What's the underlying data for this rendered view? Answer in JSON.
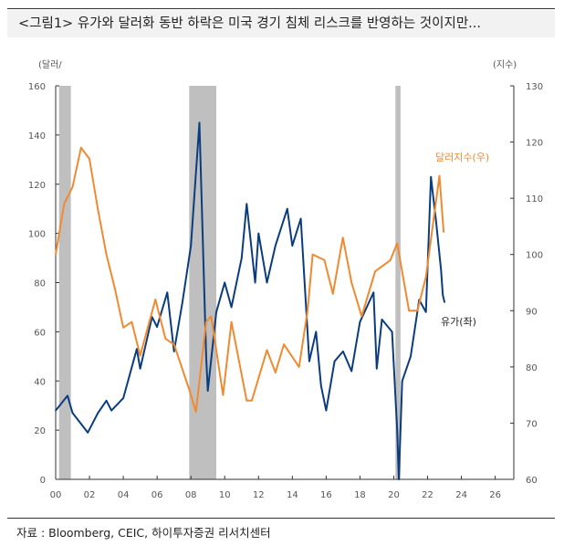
{
  "title": "<그림1> 유가와 달러화 동반 하락은 미국 경기 침체 리스크를 반영하는 것이지만...",
  "source": "자료 : Bloomberg, CEIC, 하이투자증권 리서치센터",
  "chart_data": {
    "type": "line",
    "left_axis": {
      "unit_label": "(달러/",
      "ylim": [
        0,
        160
      ],
      "ticks": [
        0,
        20,
        40,
        60,
        80,
        100,
        120,
        140,
        160
      ]
    },
    "right_axis": {
      "unit_label": "(지수)",
      "ylim": [
        60,
        130
      ],
      "ticks": [
        60,
        70,
        80,
        90,
        100,
        110,
        120,
        130
      ]
    },
    "x_axis": {
      "xlim": [
        2000,
        2027.1
      ],
      "ticks": [
        2000,
        2002,
        2004,
        2006,
        2008,
        2010,
        2012,
        2014,
        2016,
        2018,
        2020,
        2022,
        2024,
        2026
      ],
      "tick_labels": [
        "00",
        "02",
        "04",
        "06",
        "08",
        "10",
        "12",
        "14",
        "16",
        "18",
        "20",
        "22",
        "24",
        "26"
      ]
    },
    "grid": false,
    "recession_shading": [
      [
        2000.2,
        2000.9
      ],
      [
        2007.9,
        2009.5
      ],
      [
        2020.1,
        2020.4
      ]
    ],
    "colors": {
      "oil": "#0b3d7e",
      "dollar": "#f08a30",
      "shading": "#bfbfbf"
    },
    "series": [
      {
        "name": "유가(좌)",
        "axis": "left",
        "color": "#0b3d7e",
        "x": [
          2000,
          2000.7,
          2001,
          2001.9,
          2002.5,
          2003,
          2003.3,
          2004,
          2004.8,
          2005,
          2005.7,
          2006,
          2006.6,
          2007,
          2007.5,
          2008,
          2008.5,
          2008.9,
          2009,
          2009.5,
          2010,
          2010.4,
          2011,
          2011.3,
          2011.8,
          2012,
          2012.5,
          2013,
          2013.7,
          2014,
          2014.5,
          2014.9,
          2015,
          2015.4,
          2015.7,
          2016,
          2016.5,
          2017,
          2017.5,
          2018,
          2018.8,
          2018.99,
          2019.3,
          2019.9,
          2020.2,
          2020.3,
          2020.5,
          2021,
          2021.5,
          2021.9,
          2022.2,
          2022.5,
          2022.8,
          2022.9,
          2023
        ],
        "y": [
          28,
          34,
          27,
          19,
          27,
          32,
          28,
          33,
          53,
          45,
          66,
          62,
          76,
          52,
          72,
          95,
          145,
          50,
          36,
          68,
          80,
          70,
          90,
          112,
          80,
          100,
          80,
          95,
          110,
          95,
          106,
          60,
          48,
          60,
          38,
          28,
          48,
          52,
          44,
          64,
          76,
          45,
          65,
          60,
          20,
          0,
          40,
          50,
          73,
          68,
          123,
          105,
          85,
          75,
          72
        ]
      },
      {
        "name": "달러지수(우)",
        "axis": "right",
        "color": "#f08a30",
        "x": [
          2000,
          2000.5,
          2001,
          2001.5,
          2002,
          2002.5,
          2003,
          2003.5,
          2004,
          2004.5,
          2005,
          2005.9,
          2006.5,
          2007,
          2007.9,
          2008.3,
          2008.9,
          2009.2,
          2009.9,
          2010.4,
          2011.3,
          2011.6,
          2012.5,
          2013,
          2013.5,
          2014.4,
          2014.9,
          2015.2,
          2015.9,
          2016.4,
          2016.99,
          2017.5,
          2018.1,
          2018.9,
          2019.8,
          2020.2,
          2020.9,
          2021.4,
          2021.9,
          2022.7,
          2022.95
        ],
        "y": [
          100,
          109,
          112,
          119,
          117,
          108,
          100,
          94,
          87,
          88,
          82,
          92,
          85,
          84,
          76,
          72,
          88,
          89,
          75,
          88,
          74,
          74,
          83,
          79,
          84,
          80,
          90,
          100,
          99,
          93,
          103,
          95,
          89,
          97,
          99,
          102,
          90,
          90,
          96,
          114,
          104
        ]
      }
    ]
  }
}
